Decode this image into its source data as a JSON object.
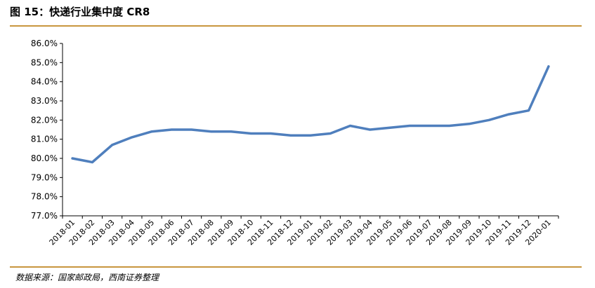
{
  "figure_label": "图 15：快递行业集中度 CR8",
  "source_text": "数据来源：国家邮政局，西南证券整理",
  "colors": {
    "rule": "#c8963e",
    "line": "#4f7fbd",
    "axis": "#000000"
  },
  "chart_data": {
    "type": "line",
    "title": "",
    "xlabel": "",
    "ylabel": "",
    "ylim": [
      77.0,
      86.0
    ],
    "ytick_step": 1.0,
    "ytick_format": "percent_1dp",
    "grid": false,
    "legend": "none",
    "x": [
      "2018-01",
      "2018-02",
      "2018-03",
      "2018-04",
      "2018-05",
      "2018-06",
      "2018-07",
      "2018-08",
      "2018-09",
      "2018-10",
      "2018-11",
      "2018-12",
      "2019-01",
      "2019-02",
      "2019-03",
      "2019-04",
      "2019-05",
      "2019-06",
      "2019-07",
      "2019-08",
      "2019-09",
      "2019-10",
      "2019-11",
      "2019-12",
      "2020-01"
    ],
    "series": [
      {
        "values": [
          80.0,
          79.8,
          80.7,
          81.1,
          81.4,
          81.5,
          81.5,
          81.4,
          81.4,
          81.3,
          81.3,
          81.2,
          81.2,
          81.3,
          81.7,
          81.5,
          81.6,
          81.7,
          81.7,
          81.7,
          81.8,
          82.0,
          82.3,
          82.5,
          84.8
        ]
      }
    ]
  }
}
